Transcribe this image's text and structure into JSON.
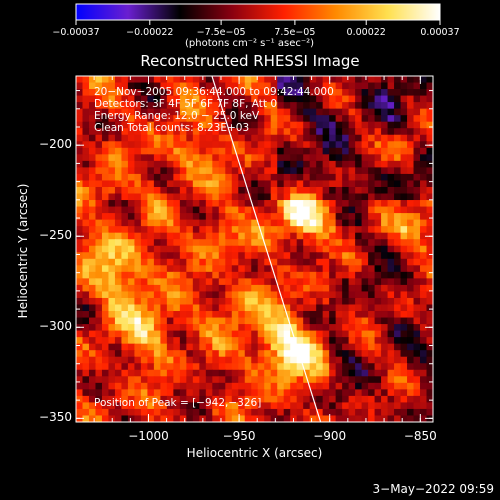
{
  "chart_data": {
    "type": "heatmap",
    "title": "Reconstructed RHESSI Image",
    "xlabel": "Heliocentric X (arcsec)",
    "ylabel": "Heliocentric Y (arcsec)",
    "xlim": [
      -1040,
      -843
    ],
    "ylim": [
      -352,
      -162
    ],
    "x_ticks": [
      {
        "value": -1000,
        "label": "−1000"
      },
      {
        "value": -950,
        "label": "−950"
      },
      {
        "value": -900,
        "label": "−900"
      },
      {
        "value": -850,
        "label": "−850"
      }
    ],
    "y_ticks": [
      {
        "value": -200,
        "label": "−200"
      },
      {
        "value": -250,
        "label": "−250"
      },
      {
        "value": -300,
        "label": "−300"
      },
      {
        "value": -350,
        "label": "−350"
      }
    ],
    "colorbar": {
      "range": [
        -0.00037,
        0.00037
      ],
      "ticks": [
        {
          "value": -0.00037,
          "label": "−0.00037"
        },
        {
          "value": -0.00022,
          "label": "−0.00022"
        },
        {
          "value": -7.5e-05,
          "label": "−7.5e−05"
        },
        {
          "value": 7.5e-05,
          "label": "7.5e−05"
        },
        {
          "value": 0.00022,
          "label": "0.00022"
        },
        {
          "value": 0.00037,
          "label": "0.00037"
        }
      ],
      "unit": "(photons cm⁻² s⁻¹ asec⁻²)",
      "colormap": [
        "#0000ff",
        "#6a1fd0",
        "#000000",
        "#8a0010",
        "#ff2000",
        "#ff8a00",
        "#ffe050",
        "#ffffff"
      ]
    },
    "limb_line": {
      "points": [
        [
          -965,
          -162
        ],
        [
          -905,
          -352
        ]
      ],
      "color": "#ffffff"
    },
    "info_lines": [
      "20−Nov−2005 09:36:44.000 to 09:42:44.000",
      "Detectors: 3F 4F 5F 6F 7F 8F, Att 0",
      "Energy Range: 12.0 − 25.0 keV",
      "Clean    Total counts: 8.23E+03"
    ],
    "peak_label": "Position of Peak = [−942,−326]",
    "peak": [
      -942,
      -326
    ],
    "grid": false,
    "legend": "none"
  },
  "footer": {
    "timestamp": "3−May−2022 09:59"
  }
}
